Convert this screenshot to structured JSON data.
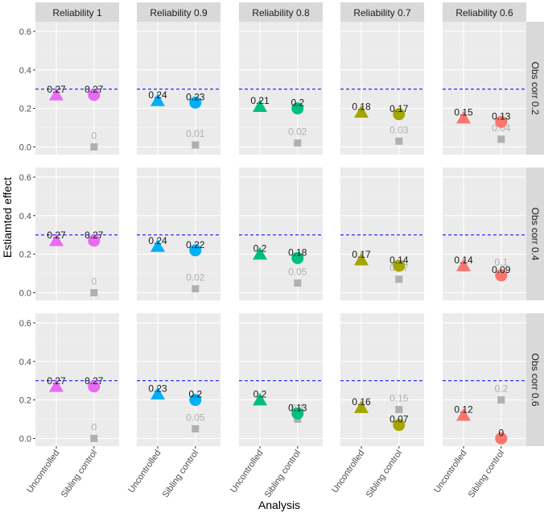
{
  "chart_data": {
    "type": "scatter",
    "title": "",
    "xlabel": "Analysis",
    "ylabel": "Estiamted effect",
    "ylim": [
      -0.04,
      0.65
    ],
    "yticks": [
      0.0,
      0.2,
      0.4,
      0.6
    ],
    "ytick_labels": [
      "0.0",
      "0.2",
      "0.4",
      "0.6"
    ],
    "categories": [
      "Uncontrolled",
      "Sibling control"
    ],
    "reference_line": 0.3,
    "columns": [
      "Reliability 1",
      "Reliability 0.9",
      "Reliability 0.8",
      "Reliability 0.7",
      "Reliability 0.6"
    ],
    "rows": [
      "Obs corr 0.2",
      "Obs corr 0.4",
      "Obs corr 0.6"
    ],
    "column_colors": [
      "#e76bf3",
      "#00b0f6",
      "#00bf7d",
      "#a3a500",
      "#f8766d"
    ],
    "reference_color": "#1a1aee",
    "gray_color": "#b0b0b0",
    "panels": [
      [
        {
          "uncontrolled": 0.27,
          "uncontrolled_label": "0.27",
          "sibling": 0.27,
          "sibling_label": "0.27",
          "gray": 0.0,
          "gray_label": "0"
        },
        {
          "uncontrolled": 0.24,
          "uncontrolled_label": "0.24",
          "sibling": 0.23,
          "sibling_label": "0.23",
          "gray": 0.01,
          "gray_label": "0.01"
        },
        {
          "uncontrolled": 0.21,
          "uncontrolled_label": "0.21",
          "sibling": 0.2,
          "sibling_label": "0.2",
          "gray": 0.02,
          "gray_label": "0.02"
        },
        {
          "uncontrolled": 0.18,
          "uncontrolled_label": "0.18",
          "sibling": 0.17,
          "sibling_label": "0.17",
          "gray": 0.03,
          "gray_label": "0.03"
        },
        {
          "uncontrolled": 0.15,
          "uncontrolled_label": "0.15",
          "sibling": 0.13,
          "sibling_label": "0.13",
          "gray": 0.04,
          "gray_label": "0.04"
        }
      ],
      [
        {
          "uncontrolled": 0.27,
          "uncontrolled_label": "0.27",
          "sibling": 0.27,
          "sibling_label": "0.27",
          "gray": 0.0,
          "gray_label": "0"
        },
        {
          "uncontrolled": 0.24,
          "uncontrolled_label": "0.24",
          "sibling": 0.22,
          "sibling_label": "0.22",
          "gray": 0.02,
          "gray_label": "0.02"
        },
        {
          "uncontrolled": 0.2,
          "uncontrolled_label": "0.2",
          "sibling": 0.18,
          "sibling_label": "0.18",
          "gray": 0.05,
          "gray_label": "0.05"
        },
        {
          "uncontrolled": 0.17,
          "uncontrolled_label": "0.17",
          "sibling": 0.14,
          "sibling_label": "0.14",
          "gray": 0.07,
          "gray_label": "0.07"
        },
        {
          "uncontrolled": 0.14,
          "uncontrolled_label": "0.14",
          "sibling": 0.09,
          "sibling_label": "0.09",
          "gray": 0.1,
          "gray_label": "0.1"
        }
      ],
      [
        {
          "uncontrolled": 0.27,
          "uncontrolled_label": "0.27",
          "sibling": 0.27,
          "sibling_label": "0.27",
          "gray": 0.0,
          "gray_label": "0"
        },
        {
          "uncontrolled": 0.23,
          "uncontrolled_label": "0.23",
          "sibling": 0.2,
          "sibling_label": "0.2",
          "gray": 0.05,
          "gray_label": "0.05"
        },
        {
          "uncontrolled": 0.2,
          "uncontrolled_label": "0.2",
          "sibling": 0.13,
          "sibling_label": "0.13",
          "gray": 0.1,
          "gray_label": "0.1"
        },
        {
          "uncontrolled": 0.16,
          "uncontrolled_label": "0.16",
          "sibling": 0.07,
          "sibling_label": "0.07",
          "gray": 0.15,
          "gray_label": "0.15"
        },
        {
          "uncontrolled": 0.12,
          "uncontrolled_label": "0.12",
          "sibling": 0.0,
          "sibling_label": "0",
          "gray": 0.2,
          "gray_label": "0.2"
        }
      ]
    ]
  }
}
